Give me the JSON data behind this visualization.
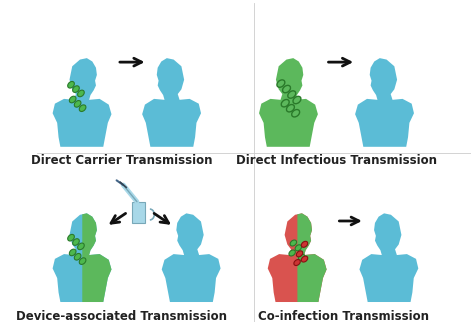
{
  "background_color": "#ffffff",
  "blue_color": "#5bbcd6",
  "green_color": "#5cb85c",
  "red_color": "#d9534f",
  "arrow_color": "#111111",
  "text_color": "#222222",
  "label_fontsize": 8.5,
  "bacteria_green": "#4db84d",
  "bacteria_edge_green": "#2a7a2a",
  "bacteria_red": "#cc3333",
  "bacteria_edge_red": "#881111",
  "labels": [
    "Direct Carrier Transmission",
    "Direct Infectious Transmission",
    "Device-associated Transmission",
    "Co-infection Transmission"
  ]
}
